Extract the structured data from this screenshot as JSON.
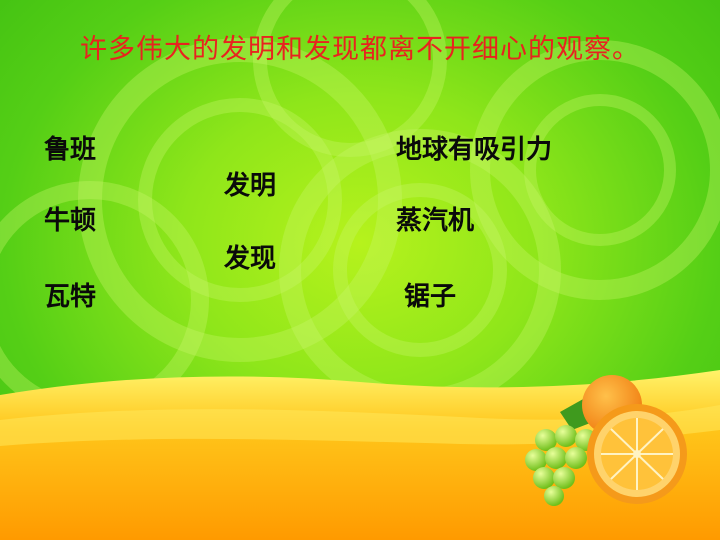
{
  "slide": {
    "title": "许多伟大的发明和发现都离不开细心的观察。",
    "people": [
      "鲁班",
      "牛顿",
      "瓦特"
    ],
    "categories": [
      "发明",
      "发现"
    ],
    "items": [
      "地球有吸引力",
      "蒸汽机",
      "锯子"
    ],
    "colors": {
      "title": "#e8231f",
      "text": "#0a0a0a",
      "background": "#8fe61a",
      "wave": "#ffb000",
      "orange": "#f7941d"
    },
    "decoration": [
      "orange-icon",
      "grapes-icon"
    ]
  }
}
